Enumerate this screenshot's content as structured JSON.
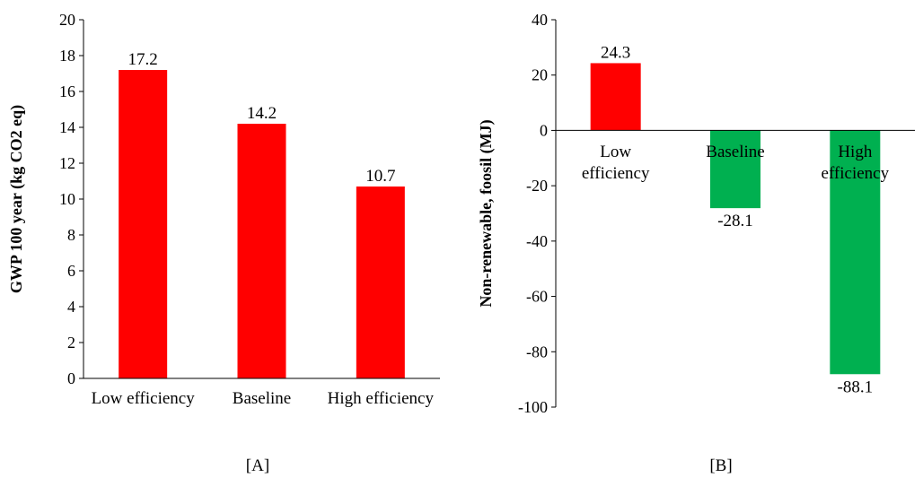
{
  "chart_data": [
    {
      "type": "bar",
      "panel_label": "[A]",
      "categories": [
        "Low efficiency",
        "Baseline",
        "High efficiency"
      ],
      "values": [
        17.2,
        14.2,
        10.7
      ],
      "value_labels": [
        "17.2",
        "14.2",
        "10.7"
      ],
      "ylabel": "GWP 100 year (kg CO2 eq)",
      "xlabel": "",
      "ylim": [
        0,
        20
      ],
      "yticks": [
        0,
        2,
        4,
        6,
        8,
        10,
        12,
        14,
        16,
        18,
        20
      ],
      "bar_color": "#ff0000",
      "grid": false
    },
    {
      "type": "bar",
      "panel_label": "[B]",
      "categories": [
        "Low efficiency",
        "Baseline",
        "High efficiency"
      ],
      "category_lines": [
        [
          "Low",
          "efficiency"
        ],
        [
          "Baseline"
        ],
        [
          "High",
          "efficiency"
        ]
      ],
      "values": [
        24.3,
        -28.1,
        -88.1
      ],
      "value_labels": [
        "24.3",
        "-28.1",
        "-88.1"
      ],
      "ylabel": "Non-renewable, foosil (MJ)",
      "xlabel": "",
      "ylim": [
        -100,
        40
      ],
      "yticks": [
        -100,
        -80,
        -60,
        -40,
        -20,
        0,
        20,
        40
      ],
      "colors": [
        "#ff0000",
        "#00b050",
        "#00b050"
      ],
      "grid": false
    }
  ]
}
